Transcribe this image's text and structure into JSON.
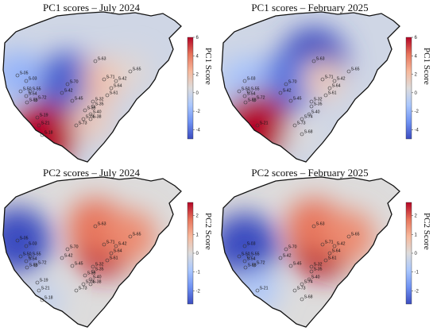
{
  "panels": [
    {
      "title": "PC1 scores – July 2024",
      "cbar_label": "PC1 Score",
      "range": [
        -5,
        6
      ],
      "ticks": [
        "6",
        "4",
        "2",
        "0",
        "-2",
        "-4"
      ],
      "tick_values": [
        6,
        4,
        2,
        0,
        -2,
        -4
      ],
      "palette": [
        "#3b4cc0",
        "#6f92f3",
        "#aac7fd",
        "#dddcdc",
        "#f7b89c",
        "#e7745b",
        "#b40426"
      ],
      "hotspots": [
        {
          "site": "S-70",
          "value": -4.5
        },
        {
          "site": "S-05",
          "value": -2.0
        },
        {
          "site": "S-71",
          "value": 2.0
        },
        {
          "site": "S-65",
          "value": 0.8
        },
        {
          "site": "S-18",
          "value": 6.0
        },
        {
          "site": "S-38",
          "value": 1.5
        }
      ],
      "sites": [
        "S-05",
        "S-03",
        "S-50",
        "S-55",
        "S-54",
        "S-42",
        "S-56",
        "S-72",
        "S-70",
        "S-63",
        "S-71",
        "S-42",
        "S-65",
        "S-64",
        "S-61",
        "S-45",
        "S-32",
        "S-35",
        "S-39",
        "S-40",
        "S-74",
        "S-38",
        "S-73",
        "S-19",
        "S-21",
        "S-18"
      ]
    },
    {
      "title": "PC1 scores – February 2025",
      "cbar_label": "PC1 Score",
      "range": [
        -5,
        6
      ],
      "ticks": [
        "6",
        "4",
        "2",
        "0",
        "-2",
        "-4"
      ],
      "tick_values": [
        6,
        4,
        2,
        0,
        -2,
        -4
      ],
      "palette": [
        "#3b4cc0",
        "#6f92f3",
        "#aac7fd",
        "#dddcdc",
        "#f7b89c",
        "#e7745b",
        "#b40426"
      ],
      "hotspots": [
        {
          "site": "S-63",
          "value": -5.0
        },
        {
          "site": "S-70",
          "value": -4.0
        },
        {
          "site": "S-03",
          "value": -1.5
        },
        {
          "site": "S-71",
          "value": 1.5
        },
        {
          "site": "S-21",
          "value": 6.0
        },
        {
          "site": "S-68",
          "value": 0.5
        }
      ],
      "sites": [
        "S-03",
        "S-50",
        "S-55",
        "S-54",
        "S-42",
        "S-56",
        "S-72",
        "S-70",
        "S-63",
        "S-71",
        "S-42",
        "S-65",
        "S-64",
        "S-61",
        "S-45",
        "S-32",
        "S-35",
        "S-40",
        "S-74",
        "S-73",
        "S-68",
        "S-21"
      ]
    },
    {
      "title": "PC2 scores – July 2024",
      "cbar_label": "PC2 Score",
      "range": [
        -2.7,
        2.7
      ],
      "ticks": [
        "2",
        "1",
        "0",
        "-1",
        "-2"
      ],
      "tick_values": [
        2,
        1,
        0,
        -1,
        -2
      ],
      "palette": [
        "#3b4cc0",
        "#6f92f3",
        "#aac7fd",
        "#dddcdc",
        "#f7b89c",
        "#e7745b",
        "#b40426"
      ],
      "hotspots": [
        {
          "site": "S-05",
          "value": -2.7
        },
        {
          "site": "S-71",
          "value": 2.5
        },
        {
          "site": "S-63",
          "value": 1.8
        },
        {
          "site": "S-65",
          "value": 1.5
        },
        {
          "site": "S-18",
          "value": -0.5
        }
      ],
      "sites": [
        "S-05",
        "S-03",
        "S-50",
        "S-55",
        "S-54",
        "S-42",
        "S-56",
        "S-72",
        "S-70",
        "S-63",
        "S-71",
        "S-65",
        "S-42",
        "S-64",
        "S-61",
        "S-45",
        "S-32",
        "S-35",
        "S-39",
        "S-40",
        "S-74",
        "S-38",
        "S-73",
        "S-19",
        "S-21",
        "S-18"
      ]
    },
    {
      "title": "PC2 scores – February 2025",
      "cbar_label": "PC2 Score",
      "range": [
        -2.7,
        2.7
      ],
      "ticks": [
        "2",
        "1",
        "0",
        "-1",
        "-2"
      ],
      "tick_values": [
        2,
        1,
        0,
        -1,
        -2
      ],
      "palette": [
        "#3b4cc0",
        "#6f92f3",
        "#aac7fd",
        "#dddcdc",
        "#f7b89c",
        "#e7745b",
        "#b40426"
      ],
      "hotspots": [
        {
          "site": "S-03",
          "value": -2.7
        },
        {
          "site": "S-71",
          "value": 2.7
        },
        {
          "site": "S-63",
          "value": 1.8
        },
        {
          "site": "S-65",
          "value": 1.5
        },
        {
          "site": "S-21",
          "value": -0.8
        }
      ],
      "sites": [
        "S-03",
        "S-50",
        "S-55",
        "S-54",
        "S-42",
        "S-56",
        "S-72",
        "S-70",
        "S-63",
        "S-71",
        "S-65",
        "S-42",
        "S-64",
        "S-61",
        "S-45",
        "S-32",
        "S-35",
        "S-40",
        "S-74",
        "S-73",
        "S-68",
        "S-21"
      ]
    }
  ]
}
